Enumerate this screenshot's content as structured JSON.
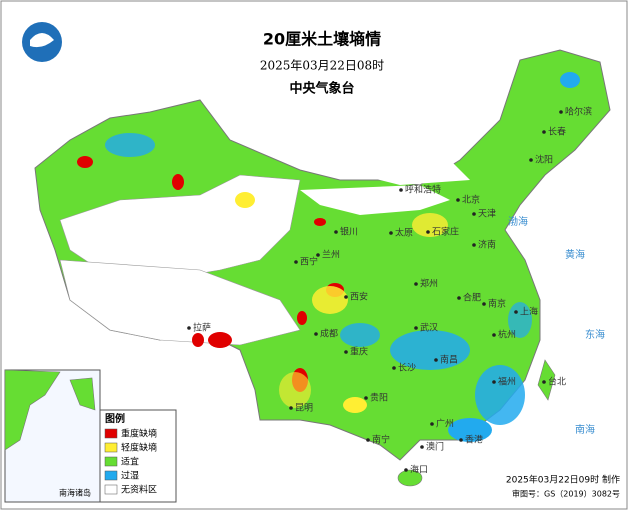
{
  "header": {
    "title": "20厘米土壤墒情",
    "time": "2025年03月22日08时",
    "agency": "中央气象台"
  },
  "legend": {
    "title": "图例",
    "items": [
      {
        "label": "重度缺墒",
        "color": "#e00000"
      },
      {
        "label": "轻度缺墒",
        "color": "#ffee33"
      },
      {
        "label": "适宜",
        "color": "#66dd33"
      },
      {
        "label": "过湿",
        "color": "#22aaee"
      },
      {
        "label": "无资料区",
        "color": "#ffffff"
      }
    ]
  },
  "cities": [
    "哈尔滨",
    "长春",
    "沈阳",
    "呼和浩特",
    "北京",
    "天津",
    "石家庄",
    "太原",
    "济南",
    "银川",
    "兰州",
    "西宁",
    "西安",
    "郑州",
    "合肥",
    "南京",
    "上海",
    "杭州",
    "武汉",
    "成都",
    "重庆",
    "拉萨",
    "长沙",
    "南昌",
    "福州",
    "台北",
    "贵阳",
    "昆明",
    "南宁",
    "广州",
    "香港",
    "澳门",
    "海口"
  ],
  "seas": [
    "渤海",
    "黄海",
    "东海",
    "南海"
  ],
  "inset": {
    "label": "南海诸岛"
  },
  "footer": {
    "made": "2025年03月22日09时 制作",
    "approval": "审图号：GS（2019）3082号"
  }
}
